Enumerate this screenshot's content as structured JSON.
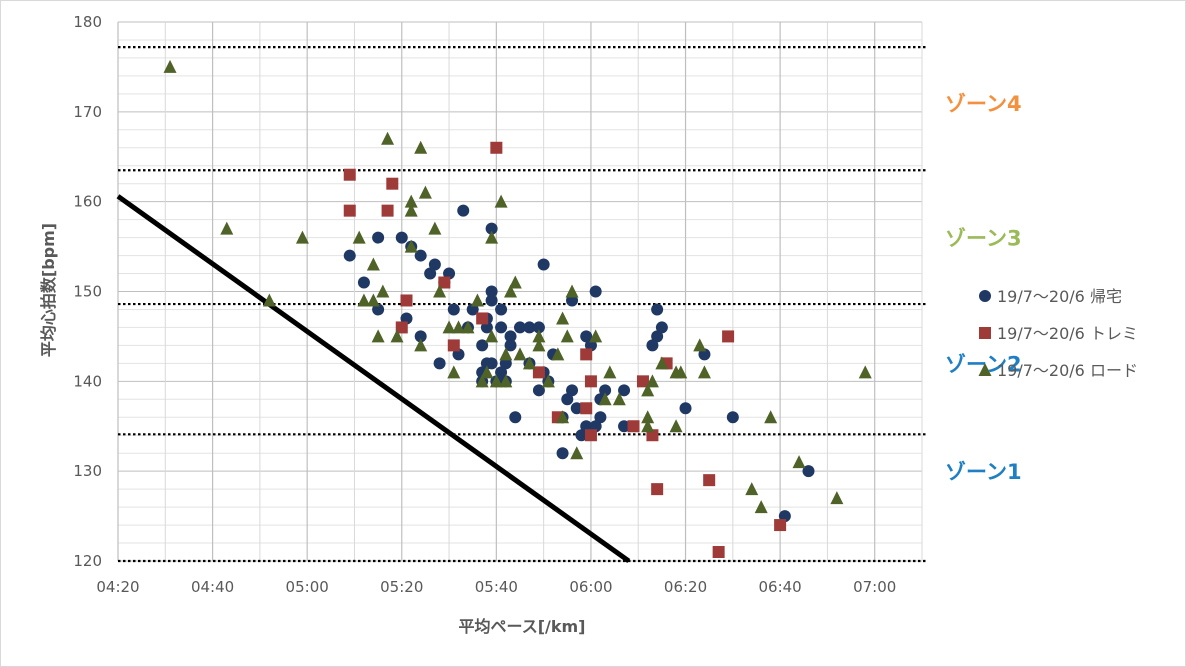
{
  "chart_data": {
    "type": "scatter",
    "xlabel": "平均ペース[/km]",
    "ylabel": "平均心拍数[bpm]",
    "xlim": [
      "04:20",
      "07:10"
    ],
    "ylim": [
      120,
      180
    ],
    "x_ticks": [
      "04:20",
      "04:40",
      "05:00",
      "05:20",
      "05:40",
      "06:00",
      "06:20",
      "06:40",
      "07:00"
    ],
    "y_ticks": [
      "120",
      "130",
      "140",
      "150",
      "160",
      "170",
      "180"
    ],
    "grid": "x major and y minor gridlines",
    "legend": "right",
    "zones": [
      {
        "label": "ゾーン4",
        "color": "#f4913e",
        "y": 171
      },
      {
        "label": "ゾーン3",
        "color": "#9bbb59",
        "y": 156
      },
      {
        "label": "ゾーン2",
        "color": "#1f7fc4",
        "y": 142
      },
      {
        "label": "ゾーン1",
        "color": "#1f7fc4",
        "y": 130
      }
    ],
    "zone_boundaries": [
      177.2,
      163.5,
      148.6,
      134.1,
      120.0
    ],
    "reference_line": {
      "from": [
        "04:20",
        160.6
      ],
      "to": [
        "06:08",
        120
      ]
    },
    "series": [
      {
        "name": "19/7～20/6 帰宅",
        "marker": "circle",
        "color": "#1f3864",
        "points": [
          [
            "05:09",
            154
          ],
          [
            "05:12",
            151
          ],
          [
            "05:15",
            148
          ],
          [
            "05:15",
            156
          ],
          [
            "05:20",
            156
          ],
          [
            "05:21",
            147
          ],
          [
            "05:22",
            155
          ],
          [
            "05:24",
            154
          ],
          [
            "05:24",
            145
          ],
          [
            "05:26",
            152
          ],
          [
            "05:27",
            153
          ],
          [
            "05:28",
            142
          ],
          [
            "05:29",
            151
          ],
          [
            "05:30",
            152
          ],
          [
            "05:31",
            148
          ],
          [
            "05:32",
            143
          ],
          [
            "05:33",
            159
          ],
          [
            "05:34",
            146
          ],
          [
            "05:35",
            148
          ],
          [
            "05:37",
            144
          ],
          [
            "05:37",
            141
          ],
          [
            "05:37",
            140
          ],
          [
            "05:38",
            142
          ],
          [
            "05:38",
            147
          ],
          [
            "05:38",
            146
          ],
          [
            "05:39",
            157
          ],
          [
            "05:39",
            150
          ],
          [
            "05:39",
            149
          ],
          [
            "05:39",
            142
          ],
          [
            "05:40",
            140
          ],
          [
            "05:41",
            148
          ],
          [
            "05:41",
            141
          ],
          [
            "05:41",
            146
          ],
          [
            "05:42",
            140
          ],
          [
            "05:42",
            142
          ],
          [
            "05:43",
            145
          ],
          [
            "05:43",
            144
          ],
          [
            "05:44",
            136
          ],
          [
            "05:45",
            146
          ],
          [
            "05:47",
            146
          ],
          [
            "05:47",
            142
          ],
          [
            "05:49",
            146
          ],
          [
            "05:49",
            139
          ],
          [
            "05:50",
            153
          ],
          [
            "05:50",
            141
          ],
          [
            "05:51",
            140
          ],
          [
            "05:52",
            143
          ],
          [
            "05:54",
            132
          ],
          [
            "05:54",
            136
          ],
          [
            "05:55",
            138
          ],
          [
            "05:56",
            149
          ],
          [
            "05:56",
            139
          ],
          [
            "05:57",
            137
          ],
          [
            "05:58",
            134
          ],
          [
            "05:59",
            135
          ],
          [
            "05:59",
            145
          ],
          [
            "06:00",
            144
          ],
          [
            "06:01",
            150
          ],
          [
            "06:01",
            135
          ],
          [
            "06:02",
            138
          ],
          [
            "06:02",
            136
          ],
          [
            "06:03",
            139
          ],
          [
            "06:07",
            135
          ],
          [
            "06:07",
            139
          ],
          [
            "06:13",
            144
          ],
          [
            "06:14",
            145
          ],
          [
            "06:14",
            148
          ],
          [
            "06:15",
            146
          ],
          [
            "06:20",
            137
          ],
          [
            "06:24",
            143
          ],
          [
            "06:30",
            136
          ],
          [
            "06:41",
            125
          ],
          [
            "06:46",
            130
          ]
        ]
      },
      {
        "name": "19/7～20/6 トレミ",
        "marker": "square",
        "color": "#9e3a38",
        "points": [
          [
            "05:09",
            159
          ],
          [
            "05:09",
            163
          ],
          [
            "05:17",
            159
          ],
          [
            "05:18",
            162
          ],
          [
            "05:20",
            146
          ],
          [
            "05:21",
            149
          ],
          [
            "05:29",
            151
          ],
          [
            "05:31",
            144
          ],
          [
            "05:37",
            147
          ],
          [
            "05:40",
            166
          ],
          [
            "05:49",
            141
          ],
          [
            "05:53",
            136
          ],
          [
            "05:59",
            143
          ],
          [
            "05:59",
            137
          ],
          [
            "06:00",
            140
          ],
          [
            "06:00",
            134
          ],
          [
            "06:09",
            135
          ],
          [
            "06:11",
            140
          ],
          [
            "06:13",
            134
          ],
          [
            "06:14",
            128
          ],
          [
            "06:16",
            142
          ],
          [
            "06:25",
            129
          ],
          [
            "06:27",
            121
          ],
          [
            "06:29",
            145
          ],
          [
            "06:40",
            124
          ]
        ]
      },
      {
        "name": "19/7～20/6 ロード",
        "marker": "triangle",
        "color": "#4f6228",
        "points": [
          [
            "04:31",
            175
          ],
          [
            "04:43",
            157
          ],
          [
            "04:52",
            149
          ],
          [
            "04:59",
            156
          ],
          [
            "05:11",
            156
          ],
          [
            "05:12",
            149
          ],
          [
            "05:14",
            153
          ],
          [
            "05:14",
            149
          ],
          [
            "05:15",
            145
          ],
          [
            "05:16",
            150
          ],
          [
            "05:17",
            167
          ],
          [
            "05:19",
            145
          ],
          [
            "05:22",
            160
          ],
          [
            "05:22",
            159
          ],
          [
            "05:22",
            155
          ],
          [
            "05:24",
            166
          ],
          [
            "05:24",
            144
          ],
          [
            "05:25",
            161
          ],
          [
            "05:27",
            157
          ],
          [
            "05:28",
            150
          ],
          [
            "05:30",
            146
          ],
          [
            "05:31",
            141
          ],
          [
            "05:32",
            146
          ],
          [
            "05:34",
            146
          ],
          [
            "05:36",
            149
          ],
          [
            "05:37",
            140
          ],
          [
            "05:38",
            141
          ],
          [
            "05:39",
            156
          ],
          [
            "05:39",
            145
          ],
          [
            "05:40",
            140
          ],
          [
            "05:41",
            160
          ],
          [
            "05:42",
            143
          ],
          [
            "05:42",
            140
          ],
          [
            "05:43",
            150
          ],
          [
            "05:44",
            151
          ],
          [
            "05:45",
            143
          ],
          [
            "05:47",
            142
          ],
          [
            "05:49",
            145
          ],
          [
            "05:49",
            144
          ],
          [
            "05:51",
            140
          ],
          [
            "05:53",
            143
          ],
          [
            "05:54",
            147
          ],
          [
            "05:54",
            136
          ],
          [
            "05:55",
            145
          ],
          [
            "05:56",
            150
          ],
          [
            "05:57",
            132
          ],
          [
            "06:01",
            145
          ],
          [
            "06:03",
            138
          ],
          [
            "06:04",
            141
          ],
          [
            "06:06",
            138
          ],
          [
            "06:12",
            136
          ],
          [
            "06:12",
            135
          ],
          [
            "06:12",
            139
          ],
          [
            "06:13",
            140
          ],
          [
            "06:15",
            142
          ],
          [
            "06:18",
            141
          ],
          [
            "06:18",
            135
          ],
          [
            "06:19",
            141
          ],
          [
            "06:23",
            144
          ],
          [
            "06:24",
            141
          ],
          [
            "06:34",
            128
          ],
          [
            "06:36",
            126
          ],
          [
            "06:38",
            136
          ],
          [
            "06:44",
            131
          ],
          [
            "06:52",
            127
          ],
          [
            "06:58",
            141
          ]
        ]
      }
    ]
  }
}
